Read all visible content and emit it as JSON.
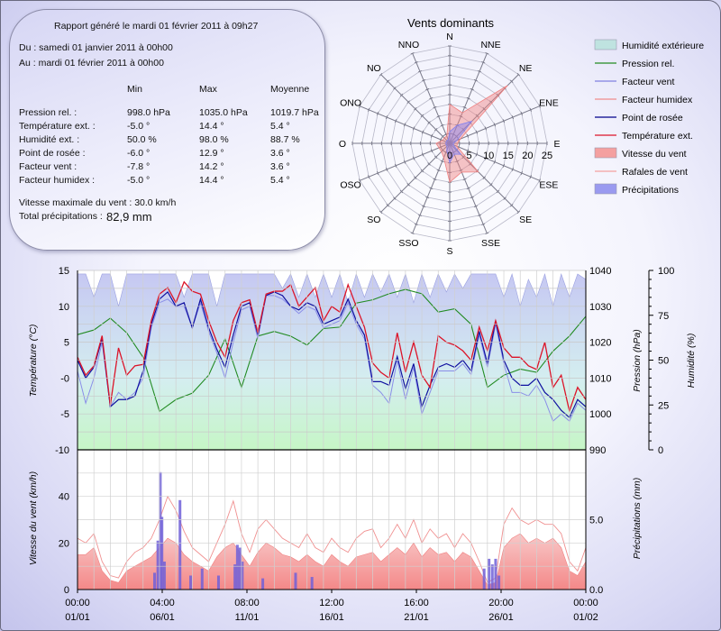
{
  "report": {
    "title": "Rapport généré le mardi 01 février 2011 à 09h27",
    "from": "Du : samedi 01 janvier 2011 à 00h00",
    "to": "Au : mardi 01 février 2011 à 00h00",
    "columns": [
      "Min",
      "Max",
      "Moyenne"
    ],
    "rows": [
      {
        "label": "Pression rel. :",
        "min": "998.0 hPa",
        "max": "1035.0 hPa",
        "avg": "1019.7 hPa"
      },
      {
        "label": "Température ext. :",
        "min": "-5.0 °",
        "max": "14.4 °",
        "avg": "5.4 °"
      },
      {
        "label": "Humidité ext. :",
        "min": "50.0 %",
        "max": "98.0 %",
        "avg": "88.7 %"
      },
      {
        "label": "Point de rosée :",
        "min": "-6.0 °",
        "max": "12.9 °",
        "avg": "3.6 °"
      },
      {
        "label": "Facteur vent :",
        "min": "-7.8 °",
        "max": "14.2 °",
        "avg": "3.6 °"
      },
      {
        "label": "Facteur humidex :",
        "min": "-5.0 °",
        "max": "14.4 °",
        "avg": "5.4 °"
      }
    ],
    "max_wind": "Vitesse maximale du vent : 30.0 km/h",
    "total_rain_label": "Total précipitations :",
    "total_rain_value": "82,9 mm"
  },
  "legend": [
    {
      "label": "Humidité extérieure",
      "kind": "box",
      "color": "#bfe3e0"
    },
    {
      "label": "Pression rel.",
      "kind": "line",
      "color": "#228b22"
    },
    {
      "label": "Facteur vent",
      "kind": "line",
      "color": "#8080e0"
    },
    {
      "label": "Facteur humidex",
      "kind": "line",
      "color": "#f08c8c"
    },
    {
      "label": "Point de rosée",
      "kind": "line",
      "color": "#00008b"
    },
    {
      "label": "Température ext.",
      "kind": "line",
      "color": "#dc1428"
    },
    {
      "label": "Vitesse du vent",
      "kind": "box",
      "color": "#f4a0a0"
    },
    {
      "label": "Rafales de vent",
      "kind": "line",
      "color": "#f4a0a0"
    },
    {
      "label": "Précipitations",
      "kind": "box",
      "color": "#9a9af0"
    }
  ],
  "chart_data": [
    {
      "type": "radar",
      "title": "Vents dominants",
      "directions": [
        "N",
        "NNE",
        "NE",
        "ENE",
        "E",
        "ESE",
        "SE",
        "SSE",
        "S",
        "SSO",
        "SO",
        "OSO",
        "O",
        "ONO",
        "NO",
        "NNO"
      ],
      "scale_labels": [
        "0",
        "5",
        "10",
        "15",
        "20",
        "25"
      ],
      "rmax": 25,
      "series": [
        {
          "name": "Vitesse du vent",
          "color": "#f08080",
          "values": [
            10,
            8.5,
            21,
            3,
            2,
            2,
            10.4,
            8,
            10,
            4,
            3,
            3,
            3.5,
            2,
            2,
            2
          ]
        },
        {
          "name": "Précipitations",
          "color": "#8080f0",
          "values": [
            3,
            5,
            8,
            2,
            1,
            1,
            4,
            3,
            5,
            2,
            1,
            1,
            1,
            1,
            1,
            1
          ]
        }
      ]
    },
    {
      "type": "line",
      "x_unit": "days since 01/01 00:00",
      "xlim": [
        0,
        31
      ],
      "x_ticks": [
        {
          "time": "00:00",
          "date": "01/01"
        },
        {
          "time": "04:00",
          "date": "06/01"
        },
        {
          "time": "08:00",
          "date": "11/01"
        },
        {
          "time": "12:00",
          "date": "16/01"
        },
        {
          "time": "16:00",
          "date": "21/01"
        },
        {
          "time": "20:00",
          "date": "26/01"
        },
        {
          "time": "00:00",
          "date": "01/02"
        }
      ],
      "axes": {
        "temperature": {
          "label": "Température (°C)",
          "ylim": [
            -10,
            15
          ],
          "ticks": [
            "15",
            "10",
            "5",
            "-0",
            "-5",
            "-10"
          ]
        },
        "pressure": {
          "label": "Pression (hPa)",
          "ylim": [
            990,
            1040
          ],
          "ticks": [
            "1040",
            "1030",
            "1020",
            "1010",
            "1000",
            "990"
          ]
        },
        "humidity": {
          "label": "Humidité (%)",
          "ylim": [
            0,
            100
          ],
          "ticks": [
            "100",
            "75",
            "50",
            "25",
            "0"
          ]
        }
      },
      "grid": true,
      "series": {
        "humidity": [
          98,
          98,
          85,
          98,
          98,
          80,
          98,
          98,
          98,
          98,
          98,
          98,
          98,
          85,
          98,
          98,
          98,
          80,
          98,
          98,
          98,
          98,
          98,
          98,
          98,
          90,
          98,
          85,
          98,
          85,
          98,
          85,
          98,
          82,
          98,
          85,
          98,
          88,
          98,
          85,
          98,
          82,
          98,
          85,
          98,
          88,
          98,
          90,
          98,
          98,
          98,
          98,
          85,
          98,
          80,
          95,
          85,
          98,
          80,
          98,
          85,
          98,
          95
        ],
        "temperature": [
          2.9,
          0.4,
          1.7,
          5.9,
          -3.8,
          4.2,
          0.4,
          1.7,
          1.9,
          8,
          11.7,
          12.6,
          10.5,
          13.4,
          12.1,
          11.7,
          8,
          5,
          2.9,
          8,
          10.5,
          10.9,
          6.3,
          11.7,
          12.1,
          12.1,
          13,
          10,
          11.3,
          12.6,
          8,
          10,
          9.2,
          13,
          10,
          7.1,
          2.1,
          0.8,
          0,
          6.3,
          0.8,
          5,
          0.4,
          -1.3,
          5.9,
          5,
          4.6,
          3.8,
          2.5,
          7.1,
          3.8,
          8,
          4.2,
          2.9,
          2.9,
          1.7,
          1.2,
          5,
          -1.3,
          0.4,
          -4.6,
          -1.3,
          -3
        ],
        "dew_point": [
          2.5,
          0,
          1.5,
          5.5,
          -4,
          -3,
          -3,
          -2.5,
          1,
          7.5,
          11,
          12,
          10,
          10.5,
          7,
          11,
          7,
          4,
          1.5,
          6,
          10,
          10.5,
          6,
          11.5,
          12,
          11.5,
          10,
          9.5,
          10.5,
          10,
          7.5,
          8,
          8.5,
          11,
          8,
          6,
          -0.5,
          -0.5,
          -1,
          3,
          -1.5,
          2,
          -4,
          -1,
          1.5,
          2,
          1.5,
          2.5,
          1,
          6.5,
          2,
          8,
          2.5,
          0,
          -1,
          -1,
          0,
          -2,
          -3,
          -4.5,
          -5.5,
          -3,
          -4
        ],
        "wind_chill": [
          1,
          -3.5,
          0,
          5,
          -4,
          -2,
          -3,
          -2,
          0,
          7,
          10.5,
          11,
          10,
          10,
          7,
          10.5,
          6.5,
          3.5,
          0,
          5,
          9.5,
          10,
          5.5,
          11.5,
          11.5,
          11,
          10,
          9,
          10,
          9.5,
          7,
          7.5,
          8,
          10.5,
          7.5,
          5.5,
          -1,
          -2,
          -3.5,
          2.5,
          -3,
          1.5,
          -5,
          -2,
          1,
          1,
          1,
          2,
          0.5,
          6,
          1.5,
          7.5,
          2,
          -2,
          -2,
          -2.5,
          -1,
          -3,
          -6,
          -5,
          -6,
          -3.5,
          -4.5
        ],
        "pressure": [
          1022.1,
          1023.4,
          1026.7,
          1022.6,
          1015.8,
          1000.7,
          1004,
          1005.8,
          1010.8,
          1020.9,
          1007.4,
          1021.7,
          1023,
          1021.7,
          1019.2,
          1023.8,
          1024.2,
          1030.9,
          1031.8,
          1033.5,
          1034.7,
          1033.5,
          1028.4,
          1029.3,
          1025,
          1007.4,
          1010.8,
          1012.5,
          1011.6,
          1017.5,
          1021.7,
          1027.2
        ]
      }
    },
    {
      "type": "area",
      "xlim": [
        0,
        31
      ],
      "axes": {
        "wind": {
          "label": "Vitesse du vent (km/h)",
          "ylim": [
            0,
            60
          ],
          "ticks": [
            "40",
            "20",
            "0"
          ]
        },
        "rain": {
          "label": "Précipitations (mm)",
          "ylim": [
            0,
            10
          ],
          "ticks": [
            "5.0",
            "0.0"
          ]
        }
      },
      "series": {
        "wind_speed": [
          15,
          15,
          18,
          8,
          4,
          3,
          8,
          10,
          12,
          14,
          18,
          22,
          20,
          15,
          12,
          10,
          8,
          14,
          18,
          20,
          15,
          10,
          16,
          20,
          18,
          15,
          14,
          12,
          15,
          12,
          10,
          15,
          12,
          10,
          14,
          15,
          16,
          12,
          15,
          18,
          15,
          20,
          14,
          18,
          15,
          16,
          12,
          16,
          14,
          8,
          2,
          3,
          18,
          22,
          24,
          20,
          22,
          20,
          22,
          18,
          8,
          6,
          12
        ],
        "wind_gust": [
          22,
          20,
          24,
          12,
          6,
          5,
          12,
          16,
          18,
          22,
          30,
          40,
          34,
          25,
          18,
          15,
          12,
          20,
          28,
          38,
          24,
          16,
          26,
          30,
          26,
          22,
          20,
          18,
          24,
          18,
          16,
          22,
          18,
          16,
          22,
          25,
          26,
          18,
          22,
          28,
          22,
          30,
          20,
          26,
          22,
          24,
          18,
          24,
          20,
          12,
          3,
          5,
          28,
          35,
          30,
          28,
          30,
          28,
          28,
          24,
          12,
          8,
          18
        ],
        "rain": [
          [
            4.7,
            1.2
          ],
          [
            4.9,
            3.5
          ],
          [
            5.05,
            8.4
          ],
          [
            5.15,
            5.2
          ],
          [
            5.3,
            2
          ],
          [
            6.25,
            6.4
          ],
          [
            6.9,
            1
          ],
          [
            7.6,
            1.5
          ],
          [
            8.6,
            1
          ],
          [
            9.6,
            1.8
          ],
          [
            9.75,
            3.2
          ],
          [
            9.9,
            3
          ],
          [
            10.05,
            2
          ],
          [
            11.3,
            0.8
          ],
          [
            13.3,
            1.2
          ],
          [
            14.3,
            0.9
          ],
          [
            24.8,
            1.5
          ],
          [
            25.1,
            2.2
          ],
          [
            25.3,
            1.8
          ],
          [
            25.5,
            2.2
          ],
          [
            25.7,
            1
          ]
        ]
      }
    }
  ]
}
